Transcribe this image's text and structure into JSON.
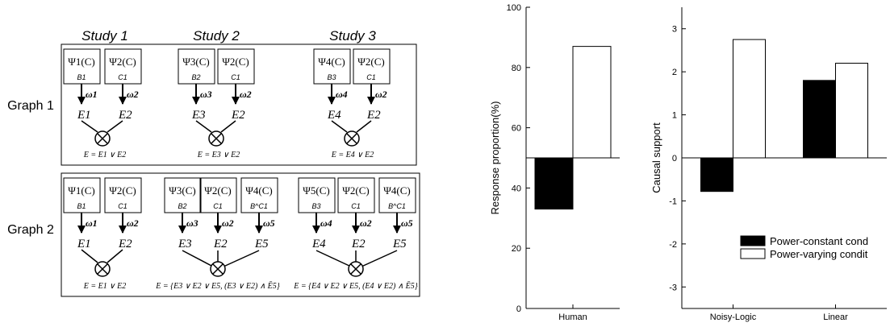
{
  "studies": [
    "Study 1",
    "Study 2",
    "Study 3"
  ],
  "graph_labels": [
    "Graph 1",
    "Graph 2"
  ],
  "diagram": {
    "psi": {
      "psi1": "Ψ1(C)",
      "psi2": "Ψ2(C)",
      "psi3": "Ψ3(C)",
      "psi4": "Ψ4(C)",
      "psi5": "Ψ5(C)"
    },
    "causes": {
      "B1": "B1",
      "B2": "B2",
      "B3": "B3",
      "C1": "C1",
      "BC1": "B^C1"
    },
    "weights": {
      "w1": "ω1",
      "w2": "ω2",
      "w3": "ω3",
      "w4": "ω4",
      "w5": "ω5"
    },
    "effects": {
      "E1": "E1",
      "E2": "E2",
      "E3": "E3",
      "E4": "E4",
      "E5": "E5"
    },
    "equations": {
      "g1s1": "E = E1 ∨ E2",
      "g1s2": "E = E3 ∨ E2",
      "g1s3": "E = E4 ∨ E2",
      "g2s1": "E = E1 ∨ E2",
      "g2s2": "E = {E3 ∨ E2 ∨ E5, (E3 ∨ E2) ∧ Ē5}",
      "g2s3": "E = {E4 ∨ E2 ∨ E5, (E4 ∨ E2) ∧ Ē5}"
    }
  },
  "chart_data": [
    {
      "type": "bar",
      "ylabel": "Response proportion(%)",
      "ylim": [
        0,
        100
      ],
      "yticks": [
        0,
        20,
        40,
        60,
        80,
        100
      ],
      "baseline": 50,
      "categories": [
        "Human"
      ],
      "series": [
        {
          "name": "Power-constant cond",
          "color": "#000000",
          "values": [
            33
          ]
        },
        {
          "name": "Power-varying condit",
          "color": "#ffffff",
          "values": [
            87
          ]
        }
      ]
    },
    {
      "type": "bar",
      "ylabel": "Causal support",
      "ylim": [
        -3.5,
        3.5
      ],
      "yticks": [
        -3,
        -2,
        -1,
        0,
        1,
        2,
        3
      ],
      "baseline": 0,
      "categories": [
        "Noisy-Logic",
        "Linear"
      ],
      "series": [
        {
          "name": "Power-constant cond",
          "color": "#000000",
          "values": [
            -0.78,
            1.8
          ]
        },
        {
          "name": "Power-varying condit",
          "color": "#ffffff",
          "values": [
            2.75,
            2.2
          ]
        }
      ],
      "legend": {
        "position": "lower-right",
        "entries": [
          "Power-constant cond",
          "Power-varying condit"
        ]
      }
    }
  ]
}
